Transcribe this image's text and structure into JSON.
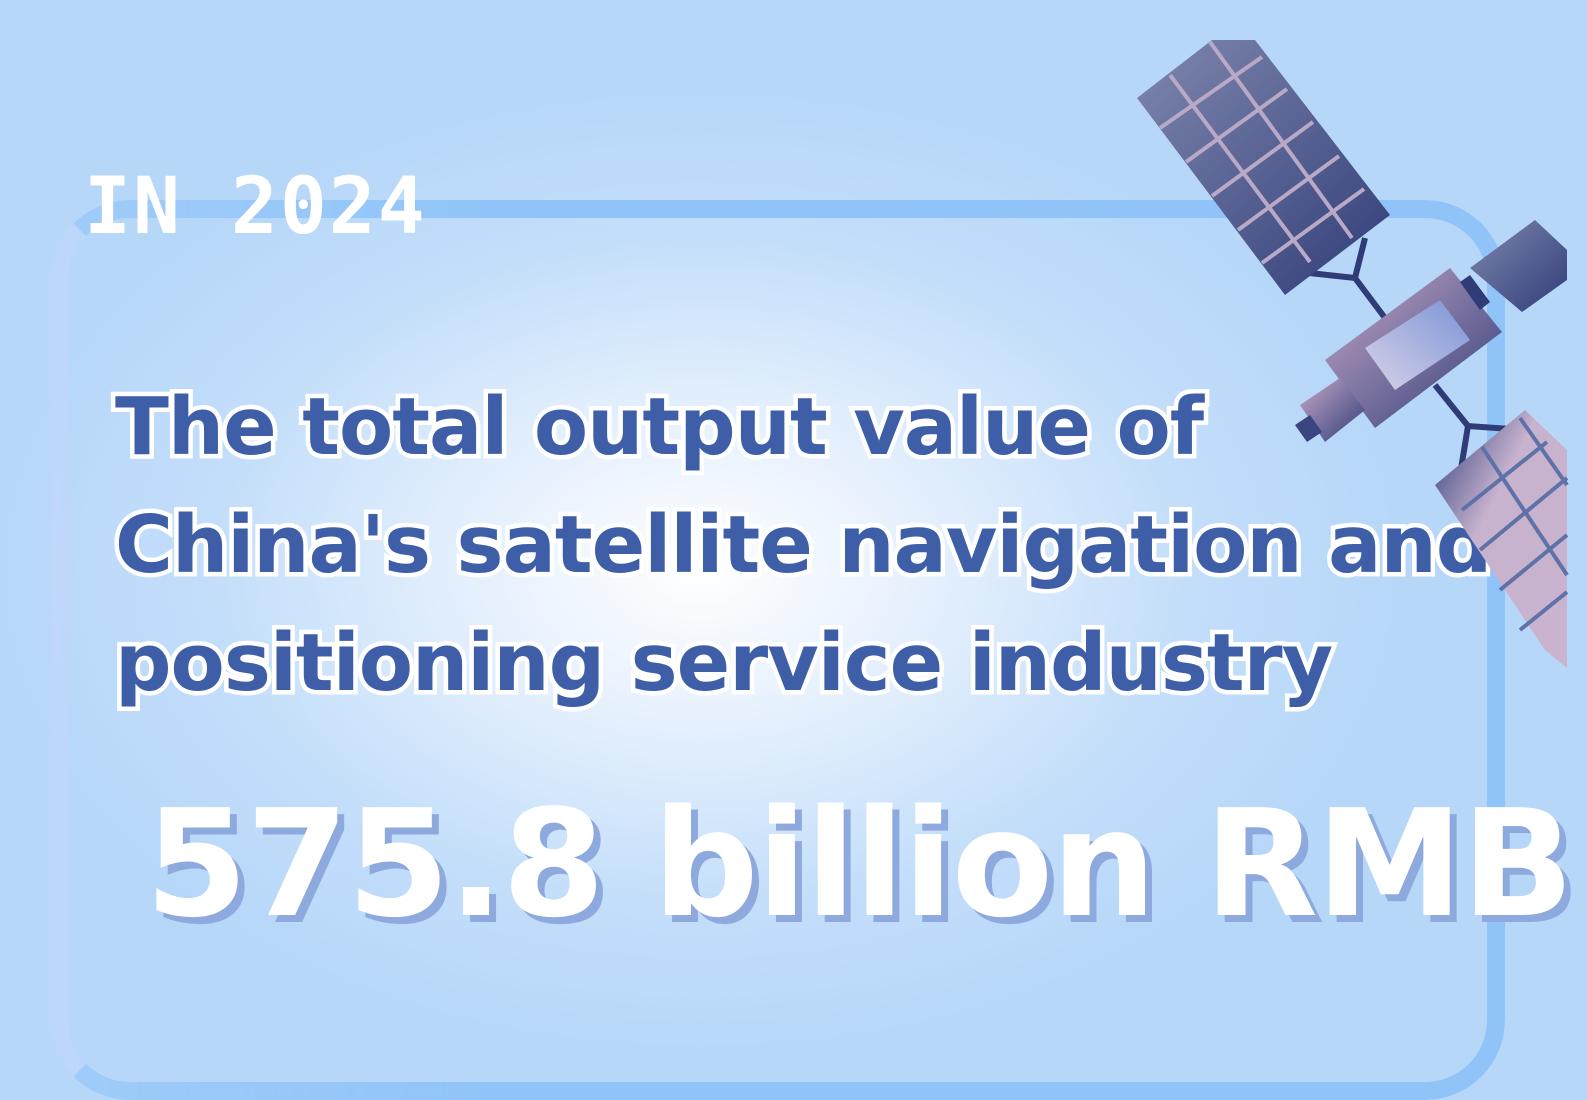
{
  "year_label": "IN 2024",
  "headline": {
    "lines": [
      "The total output value of",
      "China's satellite navigation and",
      "positioning service industry"
    ]
  },
  "value": "575.8 billion RMB",
  "colors": {
    "background": "#b8d8f8",
    "frame": "#90c4f8",
    "headline": "#3e5fa8",
    "value": "#ffffff",
    "value_shadow": "#8ea9de"
  },
  "illustration": "satellite-icon"
}
